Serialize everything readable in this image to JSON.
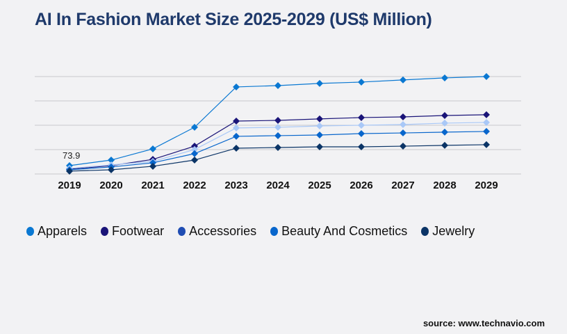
{
  "title": "AI In Fashion Market Size 2025-2029 (US$ Million)",
  "source": "source: www.technavio.com",
  "chart_data": {
    "type": "line",
    "title": "AI In Fashion Market Size 2025-2029 (US$ Million)",
    "xlabel": "",
    "ylabel": "",
    "categories": [
      "2019",
      "2020",
      "2021",
      "2022",
      "2023",
      "2024",
      "2025",
      "2026",
      "2027",
      "2028",
      "2029"
    ],
    "ylim": [
      0,
      862
    ],
    "grid": true,
    "gridlines": 5,
    "legend_position": "bottom",
    "series": [
      {
        "name": "Apparels",
        "color": "#0a78d2",
        "legend_color": "#0a78d2",
        "values": [
          73.9,
          123,
          222,
          413,
          770,
          782,
          801,
          813,
          832,
          850,
          862
        ]
      },
      {
        "name": "Footwear",
        "color": "#1a1478",
        "legend_color": "#1a1478",
        "values": [
          43,
          74,
          129,
          246,
          468,
          474,
          487,
          499,
          505,
          517,
          524
        ]
      },
      {
        "name": "Accessories",
        "color": "#a9c8f7",
        "legend_color": "#1f4db3",
        "values": [
          49,
          80,
          111,
          216,
          407,
          413,
          425,
          431,
          437,
          450,
          456
        ]
      },
      {
        "name": "Beauty And Cosmetics",
        "color": "#0866cc",
        "legend_color": "#0866cc",
        "values": [
          37,
          62,
          99,
          180,
          333,
          339,
          345,
          357,
          363,
          370,
          376
        ]
      },
      {
        "name": "Jewelry",
        "color": "#0b3466",
        "legend_color": "#0b3466",
        "values": [
          25,
          37,
          68,
          123,
          228,
          234,
          240,
          240,
          246,
          253,
          259
        ]
      }
    ],
    "annotations": [
      {
        "series": "Apparels",
        "category": "2019",
        "text": "73.9"
      }
    ]
  }
}
